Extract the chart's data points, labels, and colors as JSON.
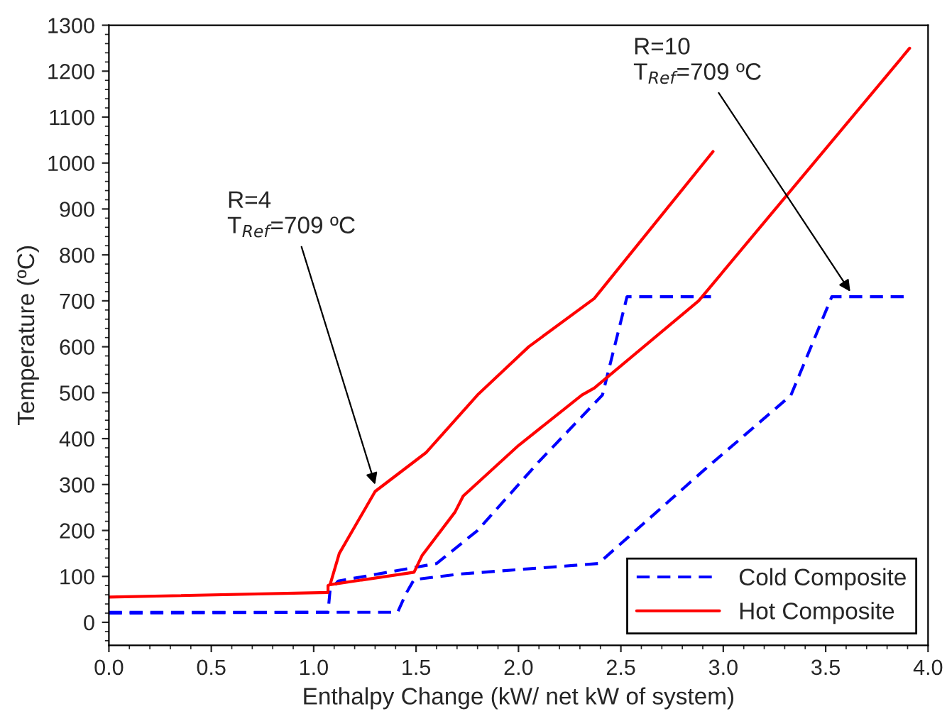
{
  "chart_data": {
    "type": "line",
    "xlabel": "Enthalpy Change (kW/ net kW of system)",
    "ylabel": "Temperature (ºC)",
    "xlim": [
      0,
      4
    ],
    "xticks": [
      {
        "value": 0,
        "label": "0.0"
      },
      0.5,
      {
        "value": 1,
        "label": "1.0"
      },
      1.5,
      {
        "value": 2,
        "label": "2.0"
      },
      2.5,
      {
        "value": 3,
        "label": "3.0"
      },
      3.5,
      {
        "value": 4,
        "label": "4.0"
      }
    ],
    "ylim": [
      -50,
      1300
    ],
    "yticks": [
      0,
      100,
      200,
      300,
      400,
      500,
      600,
      700,
      800,
      900,
      1000,
      1100,
      1200,
      1300
    ],
    "grid": false,
    "legend": "bottom right",
    "series": [
      {
        "name": "Cold Composite",
        "color": "#0000ff",
        "line_style": "dashed",
        "x": [
          0,
          1.07,
          1.08,
          1.12,
          1.5,
          1.6,
          1.8,
          2.1,
          2.41,
          2.53,
          2.94
        ],
        "values": [
          20,
          22,
          70,
          90,
          120,
          128,
          200,
          350,
          495,
          709,
          709
        ]
      },
      {
        "color": "#0000ff",
        "line_style": "dashed",
        "x": [
          0,
          1.41,
          1.45,
          1.49,
          1.71,
          2.39,
          2.91,
          3.33,
          3.53,
          3.89
        ],
        "values": [
          22,
          22,
          62,
          93,
          105,
          128,
          333,
          494,
          709,
          709
        ]
      },
      {
        "name": "Hot Composite",
        "color": "#ff0000",
        "line_style": "solid",
        "x": [
          0,
          1.07,
          1.07,
          1.08,
          1.125,
          1.3,
          1.55,
          1.8,
          2.05,
          2.37,
          2.95
        ],
        "values": [
          55,
          65,
          80,
          82,
          150,
          285,
          370,
          495,
          600,
          705,
          1025
        ]
      },
      {
        "color": "#ff0000",
        "line_style": "solid",
        "x": [
          1.08,
          1.49,
          1.53,
          1.69,
          1.73,
          2.0,
          2.31,
          2.37,
          2.88,
          3.91
        ],
        "values": [
          82,
          109,
          146,
          240,
          275,
          385,
          495,
          510,
          700,
          1250
        ]
      }
    ],
    "annotations": [
      {
        "text": "R=4\nT$_{Ref}$=709 ºC",
        "x": 1.3,
        "y": 300
      },
      {
        "text": "R=10\nT$_{Ref}$=709 ºC",
        "x": 3.62,
        "y": 720
      }
    ]
  }
}
